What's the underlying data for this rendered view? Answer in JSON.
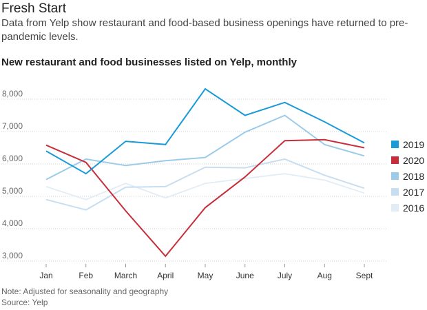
{
  "header": {
    "headline": "Fresh Start",
    "dek": "Data from Yelp show restaurant and food-based business openings have returned to pre-pandemic levels.",
    "chart_title": "New restaurant and food businesses listed on Yelp, monthly"
  },
  "footer": {
    "note": "Note: Adjusted for seasonality and geography",
    "source": "Source: Yelp"
  },
  "chart_data": {
    "type": "line",
    "title": "New restaurant and food businesses listed on Yelp, monthly",
    "xlabel": "",
    "ylabel": "",
    "categories": [
      "Jan",
      "Feb",
      "March",
      "April",
      "May",
      "June",
      "July",
      "Aug",
      "Sept"
    ],
    "ylim": [
      3000,
      8000
    ],
    "yticks": [
      3000,
      4000,
      5000,
      6000,
      7000,
      8000
    ],
    "ytick_labels": [
      "3,000",
      "4,000",
      "5,000",
      "6,000",
      "7,000",
      "8,000"
    ],
    "grid": true,
    "legend_position": "right",
    "series": [
      {
        "name": "2016",
        "color": "#e1ecf6",
        "values": [
          5300,
          4900,
          5400,
          4950,
          5400,
          5550,
          5700,
          5500,
          5100
        ]
      },
      {
        "name": "2017",
        "color": "#c7def1",
        "values": [
          4900,
          4580,
          5280,
          5300,
          5900,
          5880,
          6150,
          5650,
          5250
        ]
      },
      {
        "name": "2018",
        "color": "#9ccbe9",
        "values": [
          5520,
          6150,
          5950,
          6100,
          6200,
          6980,
          7500,
          6600,
          6250
        ]
      },
      {
        "name": "2020",
        "color": "#c72e3a",
        "values": [
          6580,
          6050,
          4550,
          3150,
          4650,
          5600,
          6720,
          6750,
          6500
        ]
      },
      {
        "name": "2019",
        "color": "#1a9ad6",
        "values": [
          6400,
          5700,
          6700,
          6600,
          8320,
          7500,
          7900,
          7300,
          6650
        ]
      }
    ]
  },
  "legend": {
    "items": [
      {
        "name": "2019",
        "color": "#1a9ad6"
      },
      {
        "name": "2020",
        "color": "#c72e3a"
      },
      {
        "name": "2018",
        "color": "#9ccbe9"
      },
      {
        "name": "2017",
        "color": "#c7def1"
      },
      {
        "name": "2016",
        "color": "#e1ecf6"
      }
    ]
  }
}
